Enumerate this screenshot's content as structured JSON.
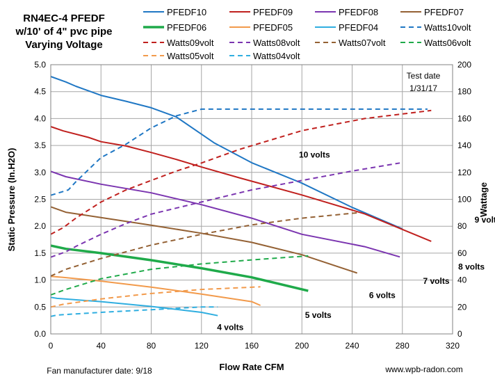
{
  "chart_data": {
    "type": "line",
    "title_lines": [
      "RN4EC-4  PFEDF",
      "w/10' of 4\" pvc pipe",
      "Varying Voltage"
    ],
    "xlabel": "Flow Rate  CFM",
    "ylabel": "Static Pressure (In.H2O)",
    "y2label": "Wattage",
    "xlim": [
      0,
      320
    ],
    "ylim": [
      0,
      5
    ],
    "y2lim": [
      0,
      200
    ],
    "x_ticks": [
      "0",
      "40",
      "80",
      "120",
      "160",
      "200",
      "240",
      "280",
      "320"
    ],
    "y_ticks": [
      "0.0",
      "0.5",
      "1.0",
      "1.5",
      "2.0",
      "2.5",
      "3.0",
      "3.5",
      "4.0",
      "4.5",
      "5.0"
    ],
    "y2_ticks": [
      "0",
      "20",
      "40",
      "60",
      "80",
      "100",
      "120",
      "140",
      "160",
      "180",
      "200"
    ],
    "grid": true,
    "legend_position": "top",
    "series": [
      {
        "name": "PFEDF10",
        "axis": "left",
        "style": "solid",
        "color": "#1f77c4",
        "width": 2,
        "x": [
          0,
          12,
          20,
          40,
          60,
          80,
          100,
          130,
          160,
          200,
          240,
          280
        ],
        "y": [
          4.78,
          4.68,
          4.6,
          4.43,
          4.32,
          4.2,
          4.03,
          3.55,
          3.18,
          2.8,
          2.35,
          1.95
        ]
      },
      {
        "name": "PFEDF09",
        "axis": "left",
        "style": "solid",
        "color": "#c0201e",
        "width": 2,
        "x": [
          0,
          10,
          30,
          40,
          60,
          80,
          100,
          120,
          150,
          200,
          250,
          303
        ],
        "y": [
          3.85,
          3.77,
          3.65,
          3.57,
          3.49,
          3.37,
          3.24,
          3.1,
          2.9,
          2.58,
          2.23,
          1.72
        ]
      },
      {
        "name": "PFEDF08",
        "axis": "left",
        "style": "solid",
        "color": "#7b35b0",
        "width": 2,
        "x": [
          0,
          12,
          40,
          80,
          120,
          160,
          200,
          250,
          278
        ],
        "y": [
          3.02,
          2.92,
          2.78,
          2.62,
          2.4,
          2.15,
          1.85,
          1.62,
          1.43
        ]
      },
      {
        "name": "PFEDF07",
        "axis": "left",
        "style": "solid",
        "color": "#946134",
        "width": 2,
        "x": [
          0,
          12,
          40,
          80,
          120,
          160,
          200,
          244
        ],
        "y": [
          2.36,
          2.26,
          2.16,
          2.02,
          1.87,
          1.7,
          1.47,
          1.13
        ]
      },
      {
        "name": "PFEDF06",
        "axis": "left",
        "style": "solid",
        "color": "#1faa4a",
        "width": 3.5,
        "x": [
          0,
          12,
          40,
          80,
          120,
          160,
          205
        ],
        "y": [
          1.64,
          1.58,
          1.5,
          1.37,
          1.22,
          1.05,
          0.8
        ]
      },
      {
        "name": "PFEDF05",
        "axis": "left",
        "style": "solid",
        "color": "#f29a4b",
        "width": 2,
        "x": [
          0,
          10,
          40,
          80,
          120,
          160,
          167
        ],
        "y": [
          1.07,
          1.05,
          0.98,
          0.87,
          0.74,
          0.6,
          0.53
        ]
      },
      {
        "name": "PFEDF04",
        "axis": "left",
        "style": "solid",
        "color": "#2faee0",
        "width": 2,
        "x": [
          0,
          5,
          40,
          80,
          120,
          133
        ],
        "y": [
          0.68,
          0.66,
          0.6,
          0.51,
          0.4,
          0.34
        ]
      },
      {
        "name": "Watts10volt",
        "axis": "right",
        "style": "dashed",
        "color": "#1f77c4",
        "width": 2,
        "x": [
          0,
          14,
          20,
          40,
          60,
          80,
          100,
          120,
          150,
          200,
          250,
          300
        ],
        "y": [
          103,
          107,
          113,
          131,
          141,
          153,
          162,
          167,
          167,
          167,
          167,
          167
        ]
      },
      {
        "name": "Watts09volt",
        "axis": "right",
        "style": "dashed",
        "color": "#c0201e",
        "width": 2,
        "x": [
          0,
          10,
          20,
          40,
          60,
          80,
          100,
          120,
          150,
          200,
          250,
          303
        ],
        "y": [
          74,
          79,
          86,
          98,
          107,
          114,
          121,
          127,
          137,
          151,
          160,
          166
        ]
      },
      {
        "name": "Watts08volt",
        "axis": "right",
        "style": "dashed",
        "color": "#7b35b0",
        "width": 2,
        "x": [
          0,
          12,
          20,
          40,
          60,
          80,
          120,
          160,
          200,
          240,
          278
        ],
        "y": [
          57,
          61,
          65,
          74,
          82,
          89,
          98,
          107,
          114,
          121,
          127
        ]
      },
      {
        "name": "Watts07volt",
        "axis": "right",
        "style": "dashed",
        "color": "#946134",
        "width": 2,
        "x": [
          0,
          12,
          40,
          80,
          120,
          160,
          200,
          244
        ],
        "y": [
          43,
          48,
          56,
          66,
          74,
          81,
          86,
          90
        ]
      },
      {
        "name": "Watts06volt",
        "axis": "right",
        "style": "dashed",
        "color": "#1faa4a",
        "width": 2,
        "x": [
          0,
          12,
          40,
          80,
          120,
          160,
          205
        ],
        "y": [
          29,
          33,
          41,
          48,
          52,
          55,
          58
        ]
      },
      {
        "name": "Watts05volt",
        "axis": "right",
        "style": "dashed",
        "color": "#f29a4b",
        "width": 2,
        "x": [
          0,
          10,
          40,
          80,
          120,
          167
        ],
        "y": [
          20,
          22,
          26,
          30,
          33,
          35
        ]
      },
      {
        "name": "Watts04volt",
        "axis": "right",
        "style": "dashed",
        "color": "#2faee0",
        "width": 2,
        "x": [
          0,
          5,
          40,
          80,
          120,
          133
        ],
        "y": [
          13,
          14,
          16,
          18,
          20,
          20
        ]
      }
    ],
    "annotations": [
      {
        "text": "10 volts",
        "x": 210,
        "y": 3.33
      },
      {
        "text": "9 volts",
        "x": 348,
        "y": 2.12
      },
      {
        "text": "8 volts",
        "x": 335,
        "y": 1.25
      },
      {
        "text": "7 volts",
        "x": 307,
        "y": 0.98
      },
      {
        "text": "6 volts",
        "x": 264,
        "y": 0.72
      },
      {
        "text": "5 volts",
        "x": 213,
        "y": 0.35
      },
      {
        "text": "4 volts",
        "x": 143,
        "y": 0.12
      }
    ],
    "test_date_lines": [
      "Test date",
      "1/31/17"
    ]
  },
  "footer": {
    "manufacturer_date": "Fan manufacturer date: 9/18",
    "website": "www.wpb-radon.com"
  }
}
